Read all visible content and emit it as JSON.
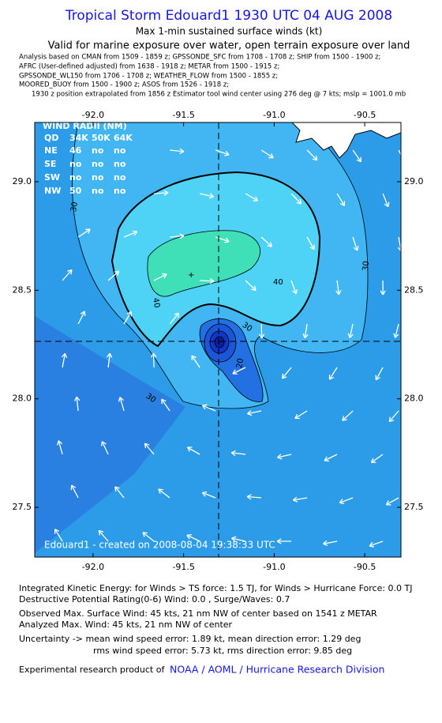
{
  "header": {
    "title": "Tropical Storm Edouard1 1930 UTC 04 AUG 2008",
    "subtitle": "Max 1-min sustained surface winds (kt)",
    "validity": "Valid for marine exposure over water, open terrain exposure over land",
    "sources": [
      "Analysis based on  CMAN from 1509 - 1859 z;  GPSSONDE_SFC from 1708 - 1708 z;  SHIP from 1500 - 1900 z;",
      "AFRC (User-defined adjusted) from 1638 - 1918 z;  METAR from 1500 - 1915 z;",
      "GPSSONDE_WL150 from 1706 - 1708 z;  WEATHER_FLOW from 1500 - 1855 z;",
      "MOORED_BUOY from 1500 - 1900 z;  ASOS from 1526 - 1918 z;",
      "1930 z position extrapolated from 1856 z Estimator tool wind center using 276 deg @ 7 kts; mslp = 1001.0 mb"
    ]
  },
  "map": {
    "xlim": [
      -92.322,
      -90.3
    ],
    "ylim": [
      27.271,
      29.273
    ],
    "xticks": [
      {
        "value": -92,
        "label": "-92.0"
      },
      {
        "value": -91.5,
        "label": "-91.5"
      },
      {
        "value": -91,
        "label": "-91.0"
      },
      {
        "value": -90.5,
        "label": "-90.5"
      }
    ],
    "yticks": [
      {
        "value": 29,
        "label": "29.0"
      },
      {
        "value": 28.5,
        "label": "28.5"
      },
      {
        "value": 28,
        "label": "28.0"
      },
      {
        "value": 27.5,
        "label": "27.5"
      }
    ],
    "contour_labels": [
      30,
      30,
      40,
      40,
      30,
      30,
      20
    ],
    "credit": "Edouard1 - created on 2008-08-04 19:38:33 UTC",
    "wind_radii": {
      "title": "WIND RADII (NM)",
      "header": [
        "QD",
        "34K",
        "50K",
        "64K"
      ],
      "rows": [
        [
          "NE",
          "46",
          "no",
          "no"
        ],
        [
          "SE",
          "no",
          "no",
          "no"
        ],
        [
          "SW",
          "no",
          "no",
          "no"
        ],
        [
          "NW",
          "50",
          "no",
          "no"
        ]
      ]
    }
  },
  "summary": [
    "Integrated Kinetic Energy:  for Winds > TS force: 1.5 TJ,  for Winds > Hurricane Force: 0.0 TJ",
    "Destructive Potential Rating(0-6)   Wind: 0.0 , Surge/Waves: 0.7",
    "Observed Max. Surface Wind: 45 kts, 21 nm NW of center based on 1541 z METAR",
    "Analyzed Max. Wind: 45 kts, 21 nm NW of center",
    "Uncertainty -> mean wind speed error: 1.89 kt,   mean direction error: 1.29 deg",
    "rms wind speed error: 5.73 kt,   rms direction error: 9.85 deg"
  ],
  "footer": {
    "text": "Experimental research product of",
    "link": "NOAA / AOML / Hurricane Research Division"
  }
}
